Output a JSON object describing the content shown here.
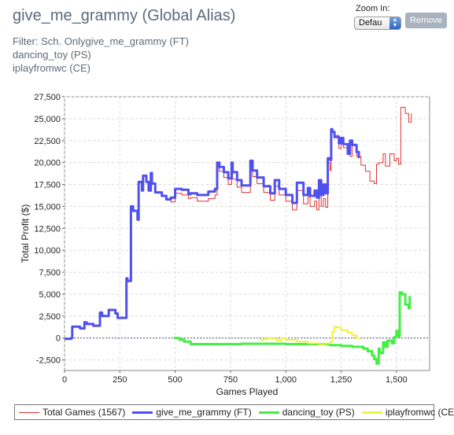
{
  "header": {
    "title": "give_me_grammy (Global Alias)",
    "filter_lines": [
      "Filter: Sch. Onlygive_me_grammy (FT)",
      "dancing_toy (PS)",
      "iplayfromwc (CE)"
    ]
  },
  "controls": {
    "zoom_label": "Zoom In:",
    "zoom_value": "Defau",
    "remove_label": "Remove"
  },
  "chart_data": {
    "type": "line",
    "xlabel": "Games Played",
    "ylabel": "Total Profit ($)",
    "xlim": [
      0,
      1650
    ],
    "ylim": [
      -3700,
      27500
    ],
    "x_ticks": [
      0,
      250,
      500,
      750,
      1000,
      1250,
      1500
    ],
    "x_tick_labels": [
      "0",
      "250",
      "500",
      "750",
      "1,000",
      "1,250",
      "1,500"
    ],
    "y_ticks": [
      -2500,
      0,
      2500,
      5000,
      7500,
      10000,
      12500,
      15000,
      17500,
      20000,
      22500,
      25000,
      27500
    ],
    "y_tick_labels": [
      "-2,500",
      "0",
      "2,500",
      "5,000",
      "7,500",
      "10,000",
      "12,500",
      "15,000",
      "17,500",
      "20,000",
      "22,500",
      "25,000",
      "27,500"
    ],
    "grid": true,
    "legend_position": "bottom",
    "series": [
      {
        "name": "Total Games (1567)",
        "color": "#e03030",
        "width": 1,
        "x": [
          0,
          30,
          35,
          70,
          90,
          100,
          130,
          160,
          170,
          200,
          230,
          240,
          280,
          285,
          300,
          310,
          330,
          335,
          350,
          355,
          370,
          380,
          390,
          395,
          410,
          440,
          460,
          480,
          500,
          530,
          560,
          570,
          600,
          650,
          680,
          690,
          700,
          720,
          740,
          755,
          760,
          780,
          800,
          840,
          850,
          870,
          900,
          930,
          950,
          970,
          1000,
          1030,
          1050,
          1080,
          1100,
          1110,
          1130,
          1140,
          1150,
          1160,
          1170,
          1180,
          1190,
          1200,
          1205,
          1210,
          1220,
          1240,
          1250,
          1260,
          1290,
          1300,
          1320,
          1340,
          1360,
          1380,
          1400,
          1410,
          1420,
          1440,
          1450,
          1470,
          1490,
          1500,
          1510,
          1520,
          1540,
          1555,
          1567
        ],
        "y": [
          -100,
          0,
          1300,
          1100,
          1800,
          1600,
          1400,
          2900,
          2500,
          3200,
          2800,
          2300,
          6800,
          6500,
          15000,
          14500,
          13500,
          17800,
          16800,
          18500,
          17800,
          16800,
          18800,
          17600,
          16600,
          16200,
          15800,
          15500,
          16500,
          16300,
          15900,
          16000,
          15600,
          15900,
          16300,
          19600,
          19000,
          18300,
          17500,
          19400,
          18100,
          17200,
          16600,
          19600,
          18400,
          17600,
          16600,
          15700,
          17300,
          16300,
          15600,
          14600,
          16800,
          15300,
          16100,
          15000,
          15600,
          14600,
          16700,
          15000,
          15900,
          14900,
          20000,
          19100,
          23800,
          23500,
          23100,
          21600,
          22700,
          21700,
          20700,
          22000,
          20700,
          19700,
          19000,
          17900,
          17600,
          19800,
          20000,
          21000,
          19600,
          21000,
          20200,
          20500,
          19800,
          26300,
          25600,
          24600,
          25600
        ]
      },
      {
        "name": "give_me_grammy (FT)",
        "color": "#5050ee",
        "width": 3,
        "x": [
          0,
          30,
          35,
          70,
          90,
          100,
          130,
          160,
          170,
          200,
          230,
          240,
          280,
          285,
          300,
          310,
          330,
          335,
          350,
          355,
          370,
          380,
          390,
          395,
          410,
          440,
          460,
          480,
          500,
          530,
          560,
          570,
          600,
          650,
          680,
          690,
          700,
          720,
          740,
          755,
          760,
          780,
          800,
          840,
          850,
          870,
          900,
          930,
          950,
          970,
          1000,
          1030,
          1050,
          1080,
          1100,
          1110,
          1130,
          1140,
          1150,
          1160,
          1170,
          1180,
          1190,
          1200,
          1205,
          1210,
          1220,
          1240,
          1250,
          1260,
          1280,
          1290,
          1300,
          1320,
          1330
        ],
        "y": [
          -100,
          0,
          1300,
          1100,
          1800,
          1600,
          1400,
          2900,
          2500,
          3200,
          2800,
          2300,
          6800,
          6500,
          15000,
          14500,
          13500,
          17800,
          16800,
          18500,
          17800,
          16800,
          18800,
          17600,
          16600,
          16200,
          15800,
          16000,
          17000,
          16900,
          16400,
          16500,
          16300,
          16700,
          17000,
          20000,
          19500,
          18900,
          18200,
          20000,
          18900,
          18000,
          17400,
          20200,
          19100,
          18300,
          17300,
          16500,
          18000,
          17000,
          16300,
          15400,
          17700,
          16300,
          17100,
          16200,
          16800,
          16000,
          18000,
          16300,
          17500,
          16500,
          20500,
          20300,
          23800,
          23500,
          22900,
          22200,
          22800,
          22100,
          21000,
          22500,
          22000,
          21200,
          20500
        ]
      },
      {
        "name": "dancing_toy (PS)",
        "color": "#44ee44",
        "width": 3,
        "x": [
          495,
          520,
          540,
          570,
          600,
          800,
          1000,
          1200,
          1250,
          1300,
          1350,
          1370,
          1390,
          1400,
          1410,
          1420,
          1425,
          1440,
          1450,
          1460,
          1480,
          1490,
          1500,
          1510,
          1515,
          1525,
          1540,
          1555,
          1560
        ],
        "y": [
          0,
          -200,
          -400,
          -700,
          -700,
          -650,
          -700,
          -800,
          -900,
          -1000,
          -1200,
          -1500,
          -2000,
          -2400,
          -2900,
          -1200,
          -1700,
          -500,
          -1000,
          -300,
          -600,
          100,
          800,
          200,
          5200,
          5000,
          3800,
          3400,
          4800
        ]
      },
      {
        "name": "iplayfromwc (CE)",
        "color": "#f0f040",
        "width": 2,
        "x": [
          880,
          900,
          920,
          940,
          960,
          980,
          1000,
          1050,
          1100,
          1150,
          1180,
          1200,
          1210,
          1220,
          1230,
          1250,
          1280,
          1300,
          1320,
          1330
        ],
        "y": [
          -200,
          -100,
          0,
          -100,
          -300,
          0,
          -200,
          -400,
          -600,
          -700,
          -600,
          -400,
          700,
          1300,
          1200,
          900,
          600,
          300,
          0,
          -100
        ]
      }
    ],
    "legend": [
      {
        "label": "Total Games (1567)",
        "color": "#e03030",
        "width": 1
      },
      {
        "label": "give_me_grammy (FT)",
        "color": "#5050ee",
        "width": 3
      },
      {
        "label": "dancing_toy (PS)",
        "color": "#44ee44",
        "width": 3
      },
      {
        "label": "iplayfromwc (CE)",
        "color": "#f0f040",
        "width": 3
      }
    ]
  }
}
